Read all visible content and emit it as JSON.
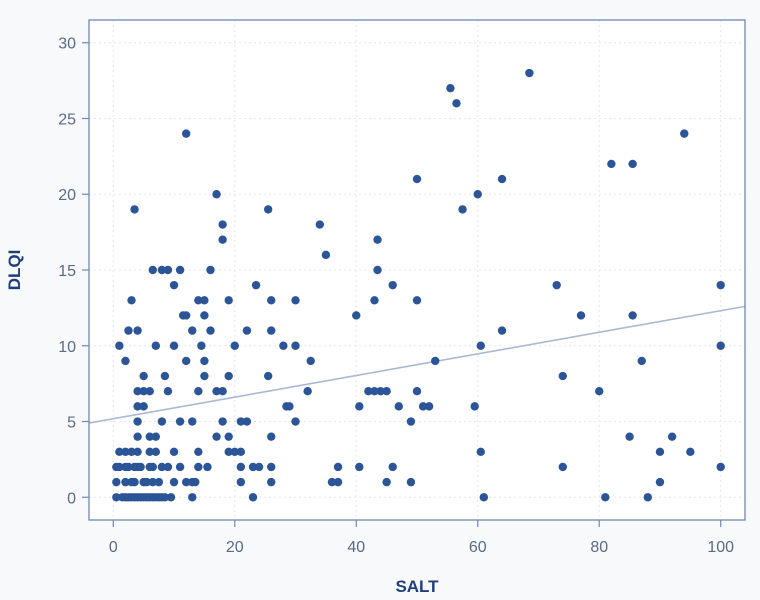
{
  "chart_data": {
    "type": "scatter",
    "title": "",
    "xlabel": "SALT",
    "ylabel": "DLQI",
    "xlim": [
      -4,
      104
    ],
    "ylim": [
      -1.5,
      31.5
    ],
    "xticks": [
      0,
      20,
      40,
      60,
      80,
      100
    ],
    "yticks": [
      0,
      5,
      10,
      15,
      20,
      25,
      30
    ],
    "grid": true,
    "legend": "none",
    "colors": {
      "point": "#2b5597",
      "trend_line": "#a9b8d4",
      "frame": "#6f89b4",
      "grid": "#e3e7ee",
      "background": "#ffffff"
    },
    "trend_line": {
      "x": [
        -4,
        104
      ],
      "y": [
        4.9,
        12.6
      ]
    },
    "points": [
      [
        0.5,
        0
      ],
      [
        1.5,
        0
      ],
      [
        2,
        0
      ],
      [
        2.5,
        0
      ],
      [
        3,
        0
      ],
      [
        3.5,
        0
      ],
      [
        4,
        0
      ],
      [
        4.5,
        0
      ],
      [
        5,
        0
      ],
      [
        5.5,
        0
      ],
      [
        6,
        0
      ],
      [
        6.5,
        0
      ],
      [
        7,
        0
      ],
      [
        7.5,
        0
      ],
      [
        8,
        0
      ],
      [
        8.5,
        0
      ],
      [
        9.5,
        0
      ],
      [
        13,
        0
      ],
      [
        23,
        0
      ],
      [
        61,
        0
      ],
      [
        81,
        0
      ],
      [
        88,
        0
      ],
      [
        0.5,
        1
      ],
      [
        2,
        1
      ],
      [
        3,
        1
      ],
      [
        3.5,
        1
      ],
      [
        5,
        1
      ],
      [
        5.5,
        1
      ],
      [
        6.5,
        1
      ],
      [
        7.5,
        1
      ],
      [
        10,
        1
      ],
      [
        12,
        1
      ],
      [
        13,
        1
      ],
      [
        13.5,
        1
      ],
      [
        21,
        1
      ],
      [
        26,
        1
      ],
      [
        36,
        1
      ],
      [
        37,
        1
      ],
      [
        45,
        1
      ],
      [
        49,
        1
      ],
      [
        90,
        1
      ],
      [
        0.5,
        2
      ],
      [
        1,
        2
      ],
      [
        2,
        2
      ],
      [
        2.5,
        2
      ],
      [
        3.5,
        2
      ],
      [
        4,
        2
      ],
      [
        4.5,
        2
      ],
      [
        6,
        2
      ],
      [
        6.5,
        2
      ],
      [
        8,
        2
      ],
      [
        9,
        2
      ],
      [
        11,
        2
      ],
      [
        14,
        2
      ],
      [
        15.5,
        2
      ],
      [
        21,
        2
      ],
      [
        23,
        2
      ],
      [
        24,
        2
      ],
      [
        26,
        2
      ],
      [
        37,
        2
      ],
      [
        40.5,
        2
      ],
      [
        46,
        2
      ],
      [
        74,
        2
      ],
      [
        100,
        2
      ],
      [
        1,
        3
      ],
      [
        2,
        3
      ],
      [
        3,
        3
      ],
      [
        4,
        3
      ],
      [
        6,
        3
      ],
      [
        7,
        3
      ],
      [
        10,
        3
      ],
      [
        14,
        3
      ],
      [
        19,
        3
      ],
      [
        20,
        3
      ],
      [
        21,
        3
      ],
      [
        60.5,
        3
      ],
      [
        90,
        3
      ],
      [
        95,
        3
      ],
      [
        4,
        4
      ],
      [
        6,
        4
      ],
      [
        7,
        4
      ],
      [
        17,
        4
      ],
      [
        19,
        4
      ],
      [
        26,
        4
      ],
      [
        85,
        4
      ],
      [
        92,
        4
      ],
      [
        4,
        5
      ],
      [
        8,
        5
      ],
      [
        11,
        5
      ],
      [
        13,
        5
      ],
      [
        18,
        5
      ],
      [
        21,
        5
      ],
      [
        22,
        5
      ],
      [
        30,
        5
      ],
      [
        49,
        5
      ],
      [
        4,
        6
      ],
      [
        5,
        6
      ],
      [
        28.5,
        6
      ],
      [
        29,
        6
      ],
      [
        40.5,
        6
      ],
      [
        47,
        6
      ],
      [
        51,
        6
      ],
      [
        52,
        6
      ],
      [
        59.5,
        6
      ],
      [
        4,
        7
      ],
      [
        5,
        7
      ],
      [
        6,
        7
      ],
      [
        9,
        7
      ],
      [
        14,
        7
      ],
      [
        17,
        7
      ],
      [
        18,
        7
      ],
      [
        32,
        7
      ],
      [
        42,
        7
      ],
      [
        43,
        7
      ],
      [
        44,
        7
      ],
      [
        45,
        7
      ],
      [
        50,
        7
      ],
      [
        80,
        7
      ],
      [
        5,
        8
      ],
      [
        8.5,
        8
      ],
      [
        15,
        8
      ],
      [
        19,
        8
      ],
      [
        25.5,
        8
      ],
      [
        74,
        8
      ],
      [
        2,
        9
      ],
      [
        12,
        9
      ],
      [
        15,
        9
      ],
      [
        32.5,
        9
      ],
      [
        53,
        9
      ],
      [
        87,
        9
      ],
      [
        1,
        10
      ],
      [
        7,
        10
      ],
      [
        10,
        10
      ],
      [
        14.5,
        10
      ],
      [
        20,
        10
      ],
      [
        28,
        10
      ],
      [
        30,
        10
      ],
      [
        60.5,
        10
      ],
      [
        100,
        10
      ],
      [
        2.5,
        11
      ],
      [
        4,
        11
      ],
      [
        13,
        11
      ],
      [
        16,
        11
      ],
      [
        22,
        11
      ],
      [
        26,
        11
      ],
      [
        64,
        11
      ],
      [
        11.5,
        12
      ],
      [
        12,
        12
      ],
      [
        15,
        12
      ],
      [
        40,
        12
      ],
      [
        77,
        12
      ],
      [
        85.5,
        12
      ],
      [
        3,
        13
      ],
      [
        14,
        13
      ],
      [
        15,
        13
      ],
      [
        19,
        13
      ],
      [
        26,
        13
      ],
      [
        30,
        13
      ],
      [
        43,
        13
      ],
      [
        50,
        13
      ],
      [
        10,
        14
      ],
      [
        23.5,
        14
      ],
      [
        46,
        14
      ],
      [
        73,
        14
      ],
      [
        100,
        14
      ],
      [
        6.5,
        15
      ],
      [
        8,
        15
      ],
      [
        9,
        15
      ],
      [
        11,
        15
      ],
      [
        16,
        15
      ],
      [
        43.5,
        15
      ],
      [
        35,
        16
      ],
      [
        43.5,
        17
      ],
      [
        18,
        17
      ],
      [
        34,
        18
      ],
      [
        18,
        18
      ],
      [
        3.5,
        19
      ],
      [
        25.5,
        19
      ],
      [
        57.5,
        19
      ],
      [
        17,
        20
      ],
      [
        60,
        20
      ],
      [
        50,
        21
      ],
      [
        64,
        21
      ],
      [
        82,
        22
      ],
      [
        85.5,
        22
      ],
      [
        12,
        24
      ],
      [
        94,
        24
      ],
      [
        56.5,
        26
      ],
      [
        55.5,
        27
      ],
      [
        68.5,
        28
      ]
    ]
  }
}
